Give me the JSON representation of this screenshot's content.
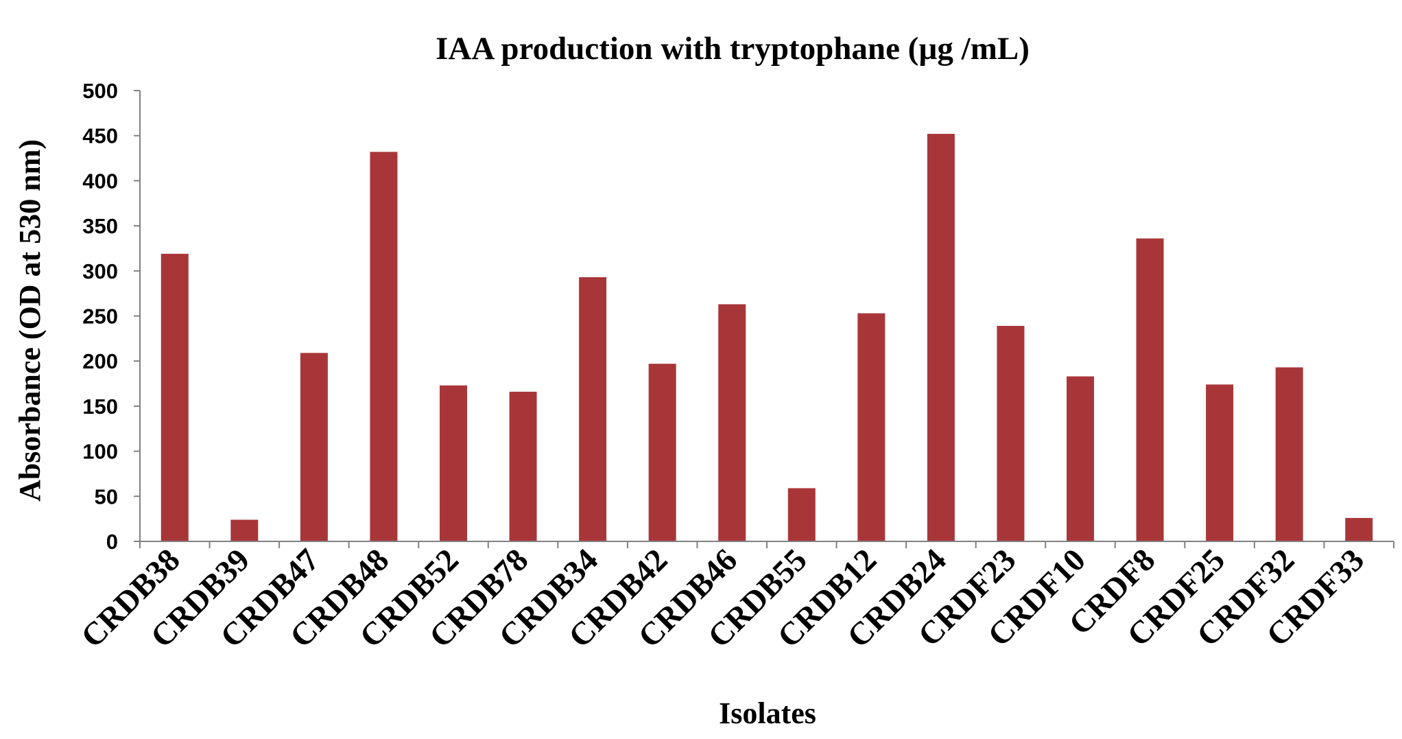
{
  "chart_data": {
    "type": "bar",
    "title": "IAA production with tryptophane (µg /mL)",
    "xlabel": "Isolates",
    "ylabel": "Absorbance (OD at 530 nm)",
    "ylim": [
      0,
      500
    ],
    "yticks": [
      0,
      50,
      100,
      150,
      200,
      250,
      300,
      350,
      400,
      450,
      500
    ],
    "grid": false,
    "legend": "none",
    "bar_color": "#A83638",
    "categories": [
      "CRDB38",
      "CRDB39",
      "CRDB47",
      "CRDB48",
      "CRDB52",
      "CRDB78",
      "CRDB34",
      "CRDB42",
      "CRDB46",
      "CRDB55",
      "CRDB12",
      "CRDB24",
      "CRDF23",
      "CRDF10",
      "CRDF8",
      "CRDF25",
      "CRDF32",
      "CRDF33"
    ],
    "values": [
      319,
      24,
      209,
      432,
      173,
      166,
      293,
      197,
      263,
      59,
      253,
      452,
      239,
      183,
      336,
      174,
      193,
      26
    ]
  }
}
